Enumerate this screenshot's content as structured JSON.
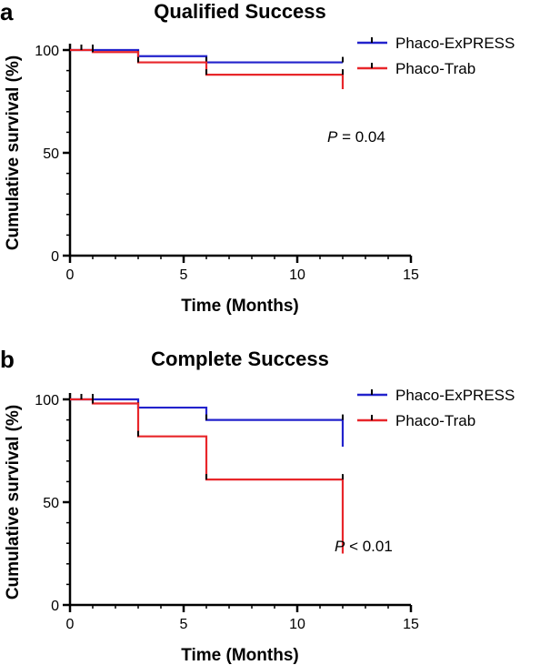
{
  "chart_data": [
    {
      "type": "line",
      "panel": "a",
      "title": "Qualified Success",
      "xlabel": "Time (Months)",
      "ylabel": "Cumulative survival (%)",
      "xlim": [
        0,
        15
      ],
      "ylim": [
        0,
        100
      ],
      "xticks": [
        0,
        5,
        10,
        15
      ],
      "yticks": [
        0,
        50,
        100
      ],
      "grid": false,
      "legend_position": "top-right",
      "annotation": {
        "italic": "P",
        "rest": " = 0.04"
      },
      "series": [
        {
          "name": "Phaco-ExPRESS",
          "color": "#2222cc",
          "steps": [
            [
              0,
              100
            ],
            [
              3,
              97
            ],
            [
              6,
              94
            ],
            [
              12,
              94
            ]
          ],
          "censors": [
            [
              0.5,
              100
            ],
            [
              1,
              100
            ],
            [
              3,
              97
            ],
            [
              6,
              94
            ],
            [
              12,
              94
            ]
          ]
        },
        {
          "name": "Phaco-Trab",
          "color": "#e8262a",
          "steps": [
            [
              0,
              100
            ],
            [
              1,
              99
            ],
            [
              3,
              94
            ],
            [
              6,
              88
            ],
            [
              12,
              81
            ]
          ],
          "censors": [
            [
              0.5,
              100
            ],
            [
              1,
              99
            ],
            [
              3,
              94
            ],
            [
              6,
              88
            ],
            [
              12,
              88
            ]
          ]
        }
      ]
    },
    {
      "type": "line",
      "panel": "b",
      "title": "Complete Success",
      "xlabel": "Time (Months)",
      "ylabel": "Cumulative survival (%)",
      "xlim": [
        0,
        15
      ],
      "ylim": [
        0,
        100
      ],
      "xticks": [
        0,
        5,
        10,
        15
      ],
      "yticks": [
        0,
        50,
        100
      ],
      "grid": false,
      "legend_position": "top-right",
      "annotation": {
        "italic": "P",
        "rest": " < 0.01"
      },
      "series": [
        {
          "name": "Phaco-ExPRESS",
          "color": "#2222cc",
          "steps": [
            [
              0,
              100
            ],
            [
              3,
              96
            ],
            [
              6,
              90
            ],
            [
              12,
              77
            ]
          ],
          "censors": [
            [
              0.5,
              100
            ],
            [
              1,
              100
            ],
            [
              3,
              96
            ],
            [
              6,
              90
            ],
            [
              12,
              90
            ]
          ]
        },
        {
          "name": "Phaco-Trab",
          "color": "#e8262a",
          "steps": [
            [
              0,
              100
            ],
            [
              1,
              98
            ],
            [
              3,
              82
            ],
            [
              6,
              61
            ],
            [
              12,
              25
            ]
          ],
          "censors": [
            [
              0.5,
              100
            ],
            [
              1,
              98
            ],
            [
              3,
              82
            ],
            [
              6,
              61
            ],
            [
              12,
              61
            ]
          ]
        }
      ]
    }
  ]
}
